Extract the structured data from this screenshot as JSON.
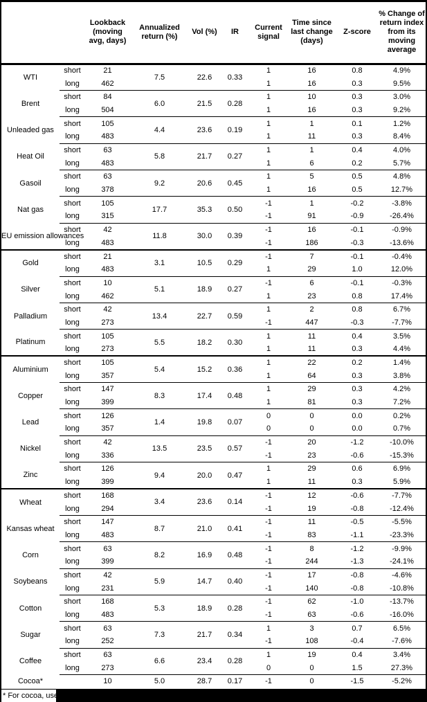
{
  "table": {
    "headers": [
      "",
      "",
      "Lookback (moving avg, days)",
      "Annualized return (%)",
      "Vol (%)",
      "IR",
      "Current signal",
      "Time since last change (days)",
      "Z-score",
      "% Change of return index from its moving average"
    ],
    "sections": [
      {
        "commodities": [
          {
            "name": "WTI",
            "annualized": "7.5",
            "vol": "22.6",
            "ir": "0.33",
            "rows": [
              {
                "side": "short",
                "lookback": "21",
                "signal": "1",
                "days": "16",
                "zscore": "0.8",
                "pct": "4.9%"
              },
              {
                "side": "long",
                "lookback": "462",
                "signal": "1",
                "days": "16",
                "zscore": "0.3",
                "pct": "9.5%"
              }
            ]
          },
          {
            "name": "Brent",
            "annualized": "6.0",
            "vol": "21.5",
            "ir": "0.28",
            "rows": [
              {
                "side": "short",
                "lookback": "84",
                "signal": "1",
                "days": "10",
                "zscore": "0.3",
                "pct": "3.0%"
              },
              {
                "side": "long",
                "lookback": "504",
                "signal": "1",
                "days": "16",
                "zscore": "0.3",
                "pct": "9.2%"
              }
            ]
          },
          {
            "name": "Unleaded gas",
            "annualized": "4.4",
            "vol": "23.6",
            "ir": "0.19",
            "rows": [
              {
                "side": "short",
                "lookback": "105",
                "signal": "1",
                "days": "1",
                "zscore": "0.1",
                "pct": "1.2%"
              },
              {
                "side": "long",
                "lookback": "483",
                "signal": "1",
                "days": "11",
                "zscore": "0.3",
                "pct": "8.4%"
              }
            ]
          },
          {
            "name": "Heat Oil",
            "annualized": "5.8",
            "vol": "21.7",
            "ir": "0.27",
            "rows": [
              {
                "side": "short",
                "lookback": "63",
                "signal": "1",
                "days": "1",
                "zscore": "0.4",
                "pct": "4.0%"
              },
              {
                "side": "long",
                "lookback": "483",
                "signal": "1",
                "days": "6",
                "zscore": "0.2",
                "pct": "5.7%"
              }
            ]
          },
          {
            "name": "Gasoil",
            "annualized": "9.2",
            "vol": "20.6",
            "ir": "0.45",
            "rows": [
              {
                "side": "short",
                "lookback": "63",
                "signal": "1",
                "days": "5",
                "zscore": "0.5",
                "pct": "4.8%"
              },
              {
                "side": "long",
                "lookback": "378",
                "signal": "1",
                "days": "16",
                "zscore": "0.5",
                "pct": "12.7%"
              }
            ]
          },
          {
            "name": "Nat gas",
            "annualized": "17.7",
            "vol": "35.3",
            "ir": "0.50",
            "rows": [
              {
                "side": "short",
                "lookback": "105",
                "signal": "-1",
                "days": "1",
                "zscore": "-0.2",
                "pct": "-3.8%"
              },
              {
                "side": "long",
                "lookback": "315",
                "signal": "-1",
                "days": "91",
                "zscore": "-0.9",
                "pct": "-26.4%"
              }
            ]
          },
          {
            "name": "EU emission allowances",
            "annualized": "11.8",
            "vol": "30.0",
            "ir": "0.39",
            "rows": [
              {
                "side": "short",
                "lookback": "42",
                "signal": "-1",
                "days": "16",
                "zscore": "-0.1",
                "pct": "-0.9%"
              },
              {
                "side": "long",
                "lookback": "483",
                "signal": "-1",
                "days": "186",
                "zscore": "-0.3",
                "pct": "-13.6%"
              }
            ]
          }
        ]
      },
      {
        "commodities": [
          {
            "name": "Gold",
            "annualized": "3.1",
            "vol": "10.5",
            "ir": "0.29",
            "rows": [
              {
                "side": "short",
                "lookback": "21",
                "signal": "-1",
                "days": "7",
                "zscore": "-0.1",
                "pct": "-0.4%"
              },
              {
                "side": "long",
                "lookback": "483",
                "signal": "1",
                "days": "29",
                "zscore": "1.0",
                "pct": "12.0%"
              }
            ]
          },
          {
            "name": "Silver",
            "annualized": "5.1",
            "vol": "18.9",
            "ir": "0.27",
            "rows": [
              {
                "side": "short",
                "lookback": "10",
                "signal": "-1",
                "days": "6",
                "zscore": "-0.1",
                "pct": "-0.3%"
              },
              {
                "side": "long",
                "lookback": "462",
                "signal": "1",
                "days": "23",
                "zscore": "0.8",
                "pct": "17.4%"
              }
            ]
          },
          {
            "name": "Palladium",
            "annualized": "13.4",
            "vol": "22.7",
            "ir": "0.59",
            "rows": [
              {
                "side": "short",
                "lookback": "42",
                "signal": "1",
                "days": "2",
                "zscore": "0.8",
                "pct": "6.7%"
              },
              {
                "side": "long",
                "lookback": "273",
                "signal": "-1",
                "days": "447",
                "zscore": "-0.3",
                "pct": "-7.7%"
              }
            ]
          },
          {
            "name": "Platinum",
            "annualized": "5.5",
            "vol": "18.2",
            "ir": "0.30",
            "rows": [
              {
                "side": "short",
                "lookback": "105",
                "signal": "1",
                "days": "11",
                "zscore": "0.4",
                "pct": "3.5%"
              },
              {
                "side": "long",
                "lookback": "273",
                "signal": "1",
                "days": "11",
                "zscore": "0.3",
                "pct": "4.4%"
              }
            ]
          }
        ]
      },
      {
        "commodities": [
          {
            "name": "Aluminium",
            "annualized": "5.4",
            "vol": "15.2",
            "ir": "0.36",
            "rows": [
              {
                "side": "short",
                "lookback": "105",
                "signal": "1",
                "days": "22",
                "zscore": "0.2",
                "pct": "1.4%"
              },
              {
                "side": "long",
                "lookback": "357",
                "signal": "1",
                "days": "64",
                "zscore": "0.3",
                "pct": "3.8%"
              }
            ]
          },
          {
            "name": "Copper",
            "annualized": "8.3",
            "vol": "17.4",
            "ir": "0.48",
            "rows": [
              {
                "side": "short",
                "lookback": "147",
                "signal": "1",
                "days": "29",
                "zscore": "0.3",
                "pct": "4.2%"
              },
              {
                "side": "long",
                "lookback": "399",
                "signal": "1",
                "days": "81",
                "zscore": "0.3",
                "pct": "7.2%"
              }
            ]
          },
          {
            "name": "Lead",
            "annualized": "1.4",
            "vol": "19.8",
            "ir": "0.07",
            "rows": [
              {
                "side": "short",
                "lookback": "126",
                "signal": "0",
                "days": "0",
                "zscore": "0.0",
                "pct": "0.2%"
              },
              {
                "side": "long",
                "lookback": "357",
                "signal": "0",
                "days": "0",
                "zscore": "0.0",
                "pct": "0.7%"
              }
            ]
          },
          {
            "name": "Nickel",
            "annualized": "13.5",
            "vol": "23.5",
            "ir": "0.57",
            "rows": [
              {
                "side": "short",
                "lookback": "42",
                "signal": "-1",
                "days": "20",
                "zscore": "-1.2",
                "pct": "-10.0%"
              },
              {
                "side": "long",
                "lookback": "336",
                "signal": "-1",
                "days": "23",
                "zscore": "-0.6",
                "pct": "-15.3%"
              }
            ]
          },
          {
            "name": "Zinc",
            "annualized": "9.4",
            "vol": "20.0",
            "ir": "0.47",
            "rows": [
              {
                "side": "short",
                "lookback": "126",
                "signal": "1",
                "days": "29",
                "zscore": "0.6",
                "pct": "6.9%"
              },
              {
                "side": "long",
                "lookback": "399",
                "signal": "1",
                "days": "11",
                "zscore": "0.3",
                "pct": "5.9%"
              }
            ]
          }
        ]
      },
      {
        "commodities": [
          {
            "name": "Wheat",
            "annualized": "3.4",
            "vol": "23.6",
            "ir": "0.14",
            "rows": [
              {
                "side": "short",
                "lookback": "168",
                "signal": "-1",
                "days": "12",
                "zscore": "-0.6",
                "pct": "-7.7%"
              },
              {
                "side": "long",
                "lookback": "294",
                "signal": "-1",
                "days": "19",
                "zscore": "-0.8",
                "pct": "-12.4%"
              }
            ]
          },
          {
            "name": "Kansas wheat",
            "annualized": "8.7",
            "vol": "21.0",
            "ir": "0.41",
            "rows": [
              {
                "side": "short",
                "lookback": "147",
                "signal": "-1",
                "days": "11",
                "zscore": "-0.5",
                "pct": "-5.5%"
              },
              {
                "side": "long",
                "lookback": "483",
                "signal": "-1",
                "days": "83",
                "zscore": "-1.1",
                "pct": "-23.3%"
              }
            ]
          },
          {
            "name": "Corn",
            "annualized": "8.2",
            "vol": "16.9",
            "ir": "0.48",
            "rows": [
              {
                "side": "short",
                "lookback": "63",
                "signal": "-1",
                "days": "8",
                "zscore": "-1.2",
                "pct": "-9.9%"
              },
              {
                "side": "long",
                "lookback": "399",
                "signal": "-1",
                "days": "244",
                "zscore": "-1.3",
                "pct": "-24.1%"
              }
            ]
          },
          {
            "name": "Soybeans",
            "annualized": "5.9",
            "vol": "14.7",
            "ir": "0.40",
            "rows": [
              {
                "side": "short",
                "lookback": "42",
                "signal": "-1",
                "days": "17",
                "zscore": "-0.8",
                "pct": "-4.6%"
              },
              {
                "side": "long",
                "lookback": "231",
                "signal": "-1",
                "days": "140",
                "zscore": "-0.8",
                "pct": "-10.8%"
              }
            ]
          },
          {
            "name": "Cotton",
            "annualized": "5.3",
            "vol": "18.9",
            "ir": "0.28",
            "rows": [
              {
                "side": "short",
                "lookback": "168",
                "signal": "-1",
                "days": "62",
                "zscore": "-1.0",
                "pct": "-13.7%"
              },
              {
                "side": "long",
                "lookback": "483",
                "signal": "-1",
                "days": "63",
                "zscore": "-0.6",
                "pct": "-16.0%"
              }
            ]
          },
          {
            "name": "Sugar",
            "annualized": "7.3",
            "vol": "21.7",
            "ir": "0.34",
            "rows": [
              {
                "side": "short",
                "lookback": "63",
                "signal": "1",
                "days": "3",
                "zscore": "0.7",
                "pct": "6.5%"
              },
              {
                "side": "long",
                "lookback": "252",
                "signal": "-1",
                "days": "108",
                "zscore": "-0.4",
                "pct": "-7.6%"
              }
            ]
          },
          {
            "name": "Coffee",
            "annualized": "6.6",
            "vol": "23.4",
            "ir": "0.28",
            "rows": [
              {
                "side": "short",
                "lookback": "63",
                "signal": "1",
                "days": "19",
                "zscore": "0.4",
                "pct": "3.4%"
              },
              {
                "side": "long",
                "lookback": "273",
                "signal": "0",
                "days": "0",
                "zscore": "1.5",
                "pct": "27.3%"
              }
            ]
          },
          {
            "name": "Cocoa*",
            "annualized": "5.0",
            "vol": "28.7",
            "ir": "0.17",
            "rows": [
              {
                "side": "",
                "lookback": "10",
                "signal": "-1",
                "days": "0",
                "zscore": "-1.5",
                "pct": "-5.2%"
              }
            ]
          }
        ]
      }
    ]
  },
  "footnote": {
    "text": "* For cocoa, uses c"
  }
}
